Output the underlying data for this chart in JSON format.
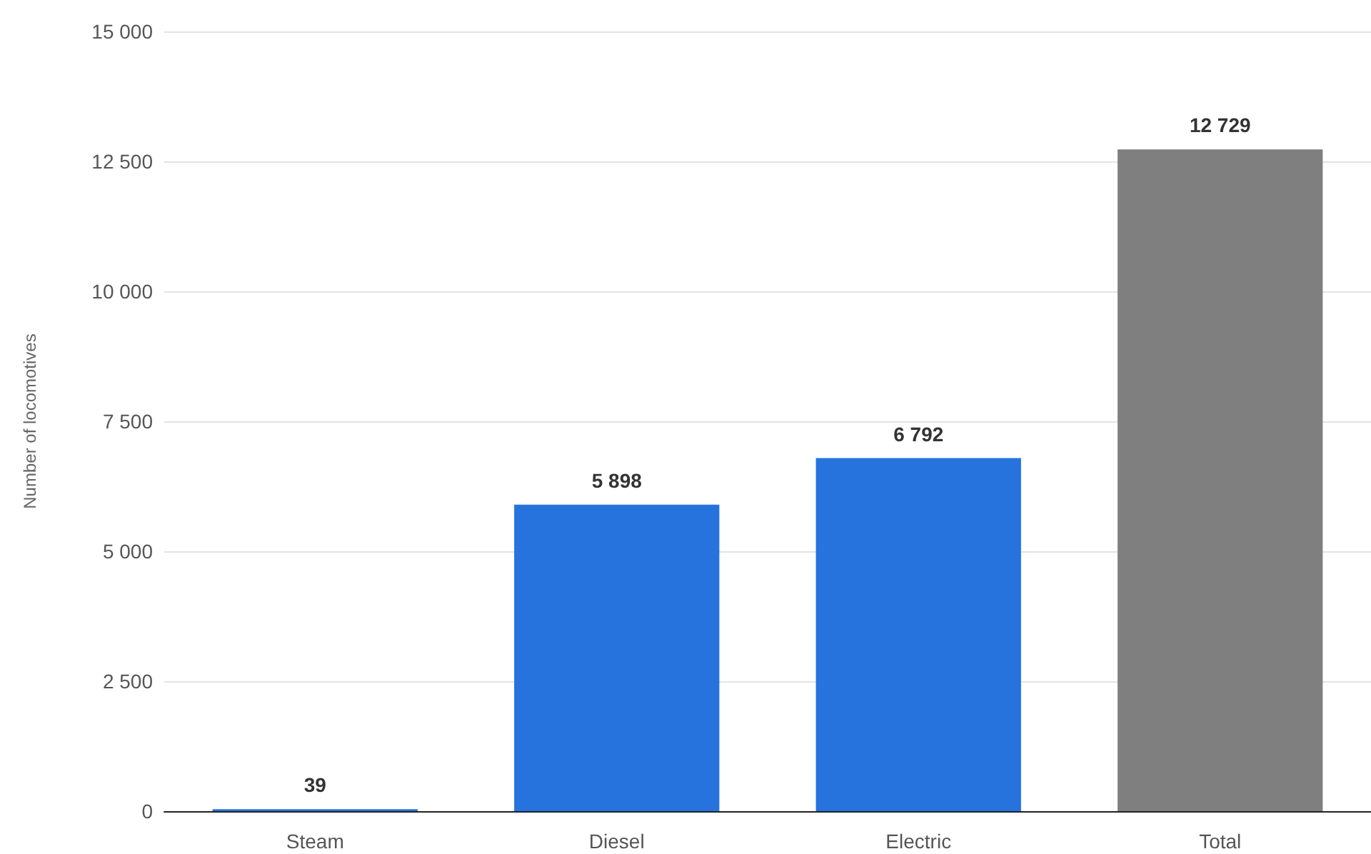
{
  "chart_data": {
    "type": "bar",
    "ylabel": "Number of locomotives",
    "categories": [
      "Steam",
      "Diesel",
      "Electric",
      "Total"
    ],
    "values": [
      39,
      5898,
      6792,
      12729
    ],
    "colors": [
      "#2673dd",
      "#2673dd",
      "#2673dd",
      "#7f7f7f"
    ],
    "value_labels": [
      "39",
      "5 898",
      "6 792",
      "12 729"
    ],
    "ylim": [
      0,
      15000
    ],
    "yticks": [
      {
        "value": 0,
        "label": "0"
      },
      {
        "value": 2500,
        "label": "2 500"
      },
      {
        "value": 5000,
        "label": "5 000"
      },
      {
        "value": 7500,
        "label": "7 500"
      },
      {
        "value": 10000,
        "label": "10 000"
      },
      {
        "value": 12500,
        "label": "12 500"
      },
      {
        "value": 15000,
        "label": "15 000"
      }
    ],
    "grid": "y"
  }
}
